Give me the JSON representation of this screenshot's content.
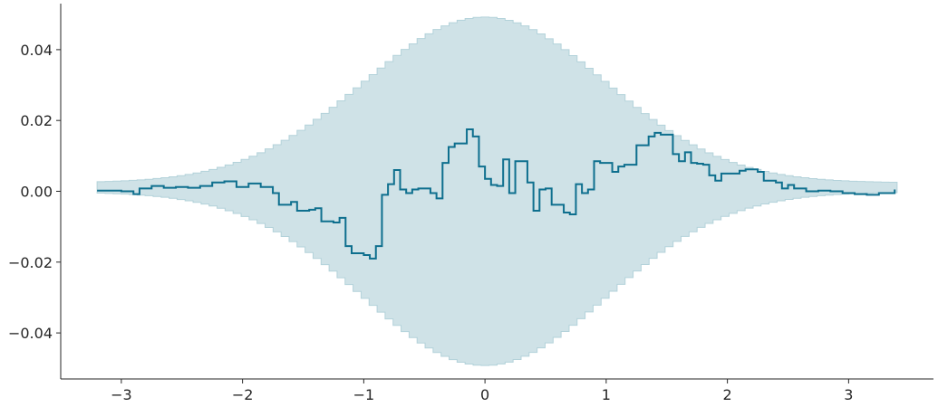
{
  "chart_data": {
    "type": "line",
    "title": "",
    "xlabel": "",
    "ylabel": "",
    "xlim": [
      -3.5,
      3.7
    ],
    "ylim": [
      -0.053,
      0.053
    ],
    "grid": false,
    "legend": "none",
    "colors": {
      "line": "#0e6f8e",
      "band_fill": "#cfe2e7",
      "band_edge": "#b3d2da",
      "axis": "#262626"
    },
    "x_ticks": [
      {
        "value": -3,
        "label": "−3"
      },
      {
        "value": -2,
        "label": "−2"
      },
      {
        "value": -1,
        "label": "−1"
      },
      {
        "value": 0,
        "label": "0"
      },
      {
        "value": 1,
        "label": "1"
      },
      {
        "value": 2,
        "label": "2"
      },
      {
        "value": 3,
        "label": "3"
      }
    ],
    "y_ticks": [
      {
        "value": -0.04,
        "label": "−0.04"
      },
      {
        "value": -0.02,
        "label": "−0.02"
      },
      {
        "value": 0.0,
        "label": "0.00"
      },
      {
        "value": 0.02,
        "label": "0.02"
      },
      {
        "value": 0.04,
        "label": "0.04"
      }
    ],
    "step_x_range": [
      -3.2,
      3.4
    ],
    "band_sigma": 1.0,
    "band_peak": 0.049,
    "band_floor": 0.0002,
    "band_upper_offset": 0.0022,
    "line_points": [
      {
        "x": -3.2,
        "y": 0.0002
      },
      {
        "x": -3.0,
        "y": 0.0
      },
      {
        "x": -2.9,
        "y": -0.0008
      },
      {
        "x": -2.85,
        "y": 0.0008
      },
      {
        "x": -2.75,
        "y": 0.0015
      },
      {
        "x": -2.65,
        "y": 0.001
      },
      {
        "x": -2.55,
        "y": 0.0012
      },
      {
        "x": -2.45,
        "y": 0.001
      },
      {
        "x": -2.35,
        "y": 0.0015
      },
      {
        "x": -2.25,
        "y": 0.0025
      },
      {
        "x": -2.15,
        "y": 0.0028
      },
      {
        "x": -2.05,
        "y": 0.0012
      },
      {
        "x": -1.95,
        "y": 0.0022
      },
      {
        "x": -1.85,
        "y": 0.0012
      },
      {
        "x": -1.75,
        "y": -0.0005
      },
      {
        "x": -1.7,
        "y": -0.0038
      },
      {
        "x": -1.6,
        "y": -0.003
      },
      {
        "x": -1.55,
        "y": -0.0055
      },
      {
        "x": -1.45,
        "y": -0.0052
      },
      {
        "x": -1.4,
        "y": -0.0048
      },
      {
        "x": -1.35,
        "y": -0.0085
      },
      {
        "x": -1.25,
        "y": -0.0088
      },
      {
        "x": -1.2,
        "y": -0.0075
      },
      {
        "x": -1.15,
        "y": -0.0155
      },
      {
        "x": -1.1,
        "y": -0.0175
      },
      {
        "x": -1.0,
        "y": -0.018
      },
      {
        "x": -0.95,
        "y": -0.019
      },
      {
        "x": -0.9,
        "y": -0.0155
      },
      {
        "x": -0.85,
        "y": -0.001
      },
      {
        "x": -0.8,
        "y": 0.002
      },
      {
        "x": -0.75,
        "y": 0.006
      },
      {
        "x": -0.7,
        "y": 0.0005
      },
      {
        "x": -0.65,
        "y": -0.0005
      },
      {
        "x": -0.6,
        "y": 0.0005
      },
      {
        "x": -0.55,
        "y": 0.0008
      },
      {
        "x": -0.45,
        "y": -0.0005
      },
      {
        "x": -0.4,
        "y": -0.002
      },
      {
        "x": -0.35,
        "y": 0.008
      },
      {
        "x": -0.3,
        "y": 0.0125
      },
      {
        "x": -0.25,
        "y": 0.0135
      },
      {
        "x": -0.2,
        "y": 0.0135
      },
      {
        "x": -0.15,
        "y": 0.0175
      },
      {
        "x": -0.1,
        "y": 0.0155
      },
      {
        "x": -0.05,
        "y": 0.007
      },
      {
        "x": 0.0,
        "y": 0.0035
      },
      {
        "x": 0.05,
        "y": 0.0018
      },
      {
        "x": 0.1,
        "y": 0.0015
      },
      {
        "x": 0.15,
        "y": 0.009
      },
      {
        "x": 0.2,
        "y": -0.0005
      },
      {
        "x": 0.25,
        "y": 0.0085
      },
      {
        "x": 0.3,
        "y": 0.0085
      },
      {
        "x": 0.35,
        "y": 0.0025
      },
      {
        "x": 0.4,
        "y": -0.0055
      },
      {
        "x": 0.45,
        "y": 0.0005
      },
      {
        "x": 0.5,
        "y": 0.0008
      },
      {
        "x": 0.55,
        "y": -0.0038
      },
      {
        "x": 0.6,
        "y": -0.0038
      },
      {
        "x": 0.65,
        "y": -0.006
      },
      {
        "x": 0.7,
        "y": -0.0065
      },
      {
        "x": 0.75,
        "y": 0.002
      },
      {
        "x": 0.8,
        "y": -0.0005
      },
      {
        "x": 0.85,
        "y": 0.0005
      },
      {
        "x": 0.9,
        "y": 0.0085
      },
      {
        "x": 0.95,
        "y": 0.008
      },
      {
        "x": 1.0,
        "y": 0.008
      },
      {
        "x": 1.05,
        "y": 0.0055
      },
      {
        "x": 1.1,
        "y": 0.007
      },
      {
        "x": 1.15,
        "y": 0.0075
      },
      {
        "x": 1.2,
        "y": 0.0075
      },
      {
        "x": 1.25,
        "y": 0.013
      },
      {
        "x": 1.3,
        "y": 0.013
      },
      {
        "x": 1.35,
        "y": 0.0155
      },
      {
        "x": 1.4,
        "y": 0.0165
      },
      {
        "x": 1.45,
        "y": 0.016
      },
      {
        "x": 1.5,
        "y": 0.016
      },
      {
        "x": 1.55,
        "y": 0.0105
      },
      {
        "x": 1.6,
        "y": 0.0085
      },
      {
        "x": 1.65,
        "y": 0.011
      },
      {
        "x": 1.7,
        "y": 0.008
      },
      {
        "x": 1.75,
        "y": 0.0078
      },
      {
        "x": 1.8,
        "y": 0.0075
      },
      {
        "x": 1.85,
        "y": 0.0045
      },
      {
        "x": 1.9,
        "y": 0.003
      },
      {
        "x": 1.95,
        "y": 0.005
      },
      {
        "x": 2.0,
        "y": 0.005
      },
      {
        "x": 2.1,
        "y": 0.0058
      },
      {
        "x": 2.15,
        "y": 0.0062
      },
      {
        "x": 2.2,
        "y": 0.0062
      },
      {
        "x": 2.25,
        "y": 0.0055
      },
      {
        "x": 2.3,
        "y": 0.003
      },
      {
        "x": 2.4,
        "y": 0.0025
      },
      {
        "x": 2.45,
        "y": 0.0008
      },
      {
        "x": 2.5,
        "y": 0.0018
      },
      {
        "x": 2.55,
        "y": 0.0008
      },
      {
        "x": 2.65,
        "y": 0.0
      },
      {
        "x": 2.75,
        "y": 0.0002
      },
      {
        "x": 2.85,
        "y": 0.0
      },
      {
        "x": 2.95,
        "y": -0.0005
      },
      {
        "x": 3.05,
        "y": -0.0008
      },
      {
        "x": 3.15,
        "y": -0.001
      },
      {
        "x": 3.25,
        "y": -0.0005
      },
      {
        "x": 3.35,
        "y": -0.0005
      },
      {
        "x": 3.38,
        "y": 0.0005
      }
    ]
  }
}
